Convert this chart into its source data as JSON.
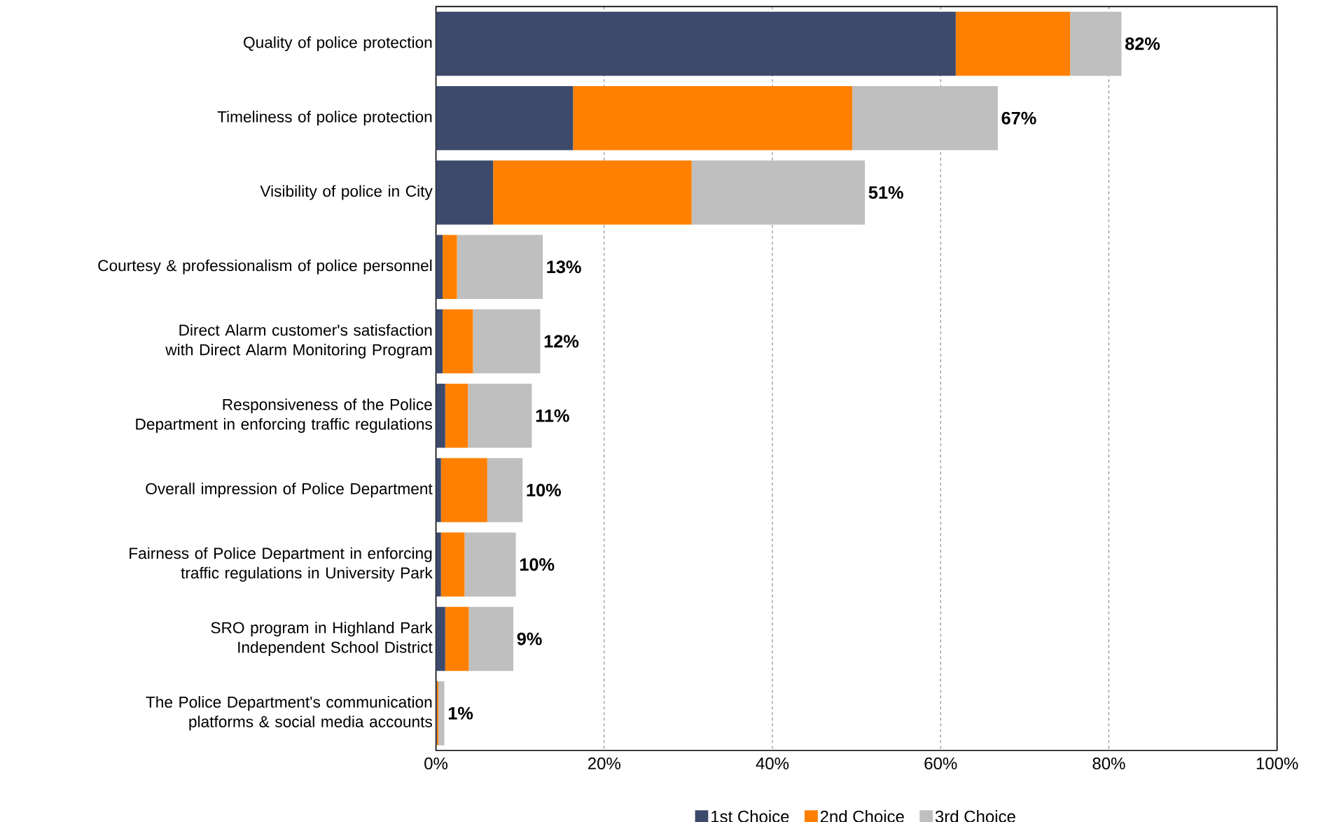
{
  "chart_data": {
    "type": "bar",
    "orientation": "horizontal",
    "stacked": true,
    "categories": [
      "Quality of police protection",
      "Timeliness of police protection",
      "Visibility of police in City",
      "Courtesy & professionalism of police personnel",
      "Direct Alarm customer's satisfaction with Direct Alarm Monitoring Program",
      "Responsiveness of the Police Department in enforcing traffic regulations",
      "Overall impression of Police Department",
      "Fairness of Police Department in enforcing traffic regulations in University Park",
      "SRO program in Highland Park Independent School District",
      "The Police Department's communication platforms & social media accounts"
    ],
    "series": [
      {
        "name": "1st Choice",
        "color": "#3d4a6b",
        "values": [
          61.8,
          16.3,
          6.8,
          0.8,
          0.8,
          1.1,
          0.6,
          0.6,
          1.1,
          0.1
        ]
      },
      {
        "name": "2nd Choice",
        "color": "#ff8000",
        "values": [
          13.6,
          33.2,
          23.6,
          1.7,
          3.6,
          2.7,
          5.5,
          2.8,
          2.8,
          0.2
        ]
      },
      {
        "name": "3rd Choice",
        "color": "#bfbfbf",
        "values": [
          6.1,
          17.3,
          20.6,
          10.2,
          8.0,
          7.6,
          4.2,
          6.1,
          5.3,
          0.7
        ]
      }
    ],
    "totals": [
      "82%",
      "67%",
      "51%",
      "13%",
      "12%",
      "11%",
      "10%",
      "10%",
      "9%",
      "1%"
    ],
    "xlim": [
      0,
      100
    ],
    "xticks": [
      {
        "value": 0,
        "label": "0%"
      },
      {
        "value": 20,
        "label": "20%"
      },
      {
        "value": 40,
        "label": "40%"
      },
      {
        "value": 60,
        "label": "60%"
      },
      {
        "value": 80,
        "label": "80%"
      },
      {
        "value": 100,
        "label": "100%"
      }
    ],
    "grid": "x",
    "legend": "bottom"
  }
}
